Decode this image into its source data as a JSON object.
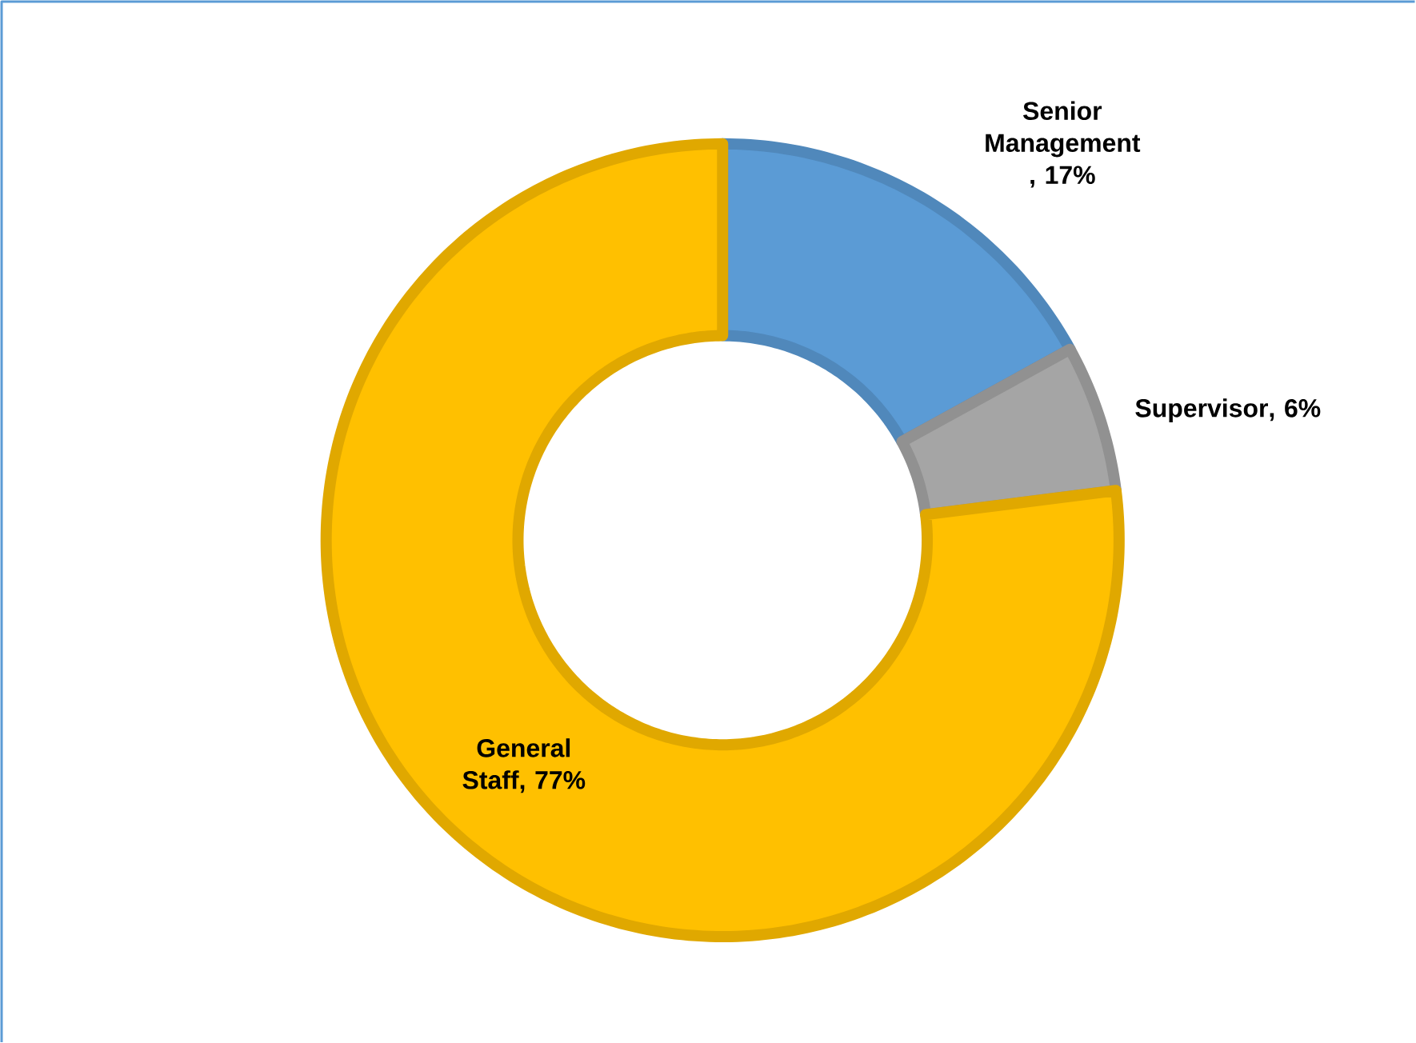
{
  "chart_data": {
    "type": "donut",
    "categories": [
      "Senior Management",
      "Supervisor",
      "General Staff"
    ],
    "values": [
      17,
      6,
      77
    ],
    "value_labels": [
      ", 17%",
      ", 6%",
      ", 77%"
    ],
    "colors": [
      "#5b9bd5",
      "#a5a5a5",
      "#ffc000"
    ]
  }
}
